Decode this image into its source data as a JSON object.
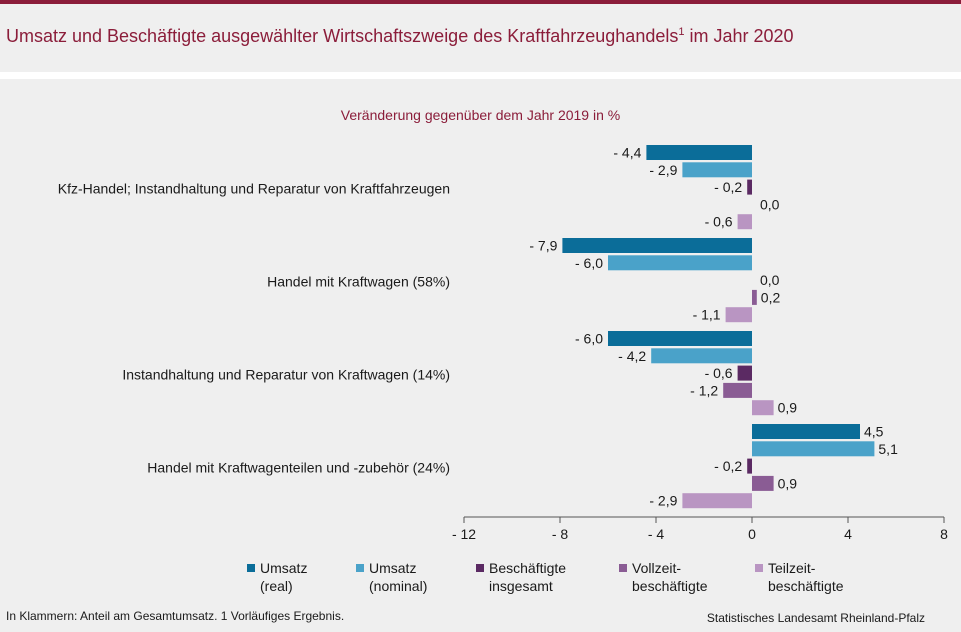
{
  "title": {
    "main": "Umsatz und Beschäftigte ausgewählter Wirtschaftszweige des Kraftfahrzeughandels",
    "sup": "1",
    "suffix": " im Jahr 2020"
  },
  "subtitle": "Veränderung gegenüber dem Jahr 2019 in %",
  "footnote": "In Klammern: Anteil am Gesamtumsatz. 1 Vorläufiges Ergebnis.",
  "source": "Statistisches Landesamt Rheinland-Pfalz",
  "chart_data": {
    "type": "bar",
    "orientation": "horizontal",
    "xlim": [
      -12,
      8
    ],
    "xticks": [
      -12,
      -8,
      -4,
      0,
      4,
      8
    ],
    "xtick_labels": [
      "- 12",
      "- 8",
      "- 4",
      "0",
      "4",
      "8"
    ],
    "categories": [
      "Kfz-Handel; Instandhaltung und Reparatur von Kraftfahrzeugen",
      "Handel mit Kraftwagen (58%)",
      "Instandhaltung und Reparatur von Kraftwagen (14%)",
      "Handel mit Kraftwagenteilen und -zubehör (24%)"
    ],
    "series": [
      {
        "name": "Umsatz (real)",
        "legend_lines": [
          "Umsatz",
          "(real)"
        ],
        "color": "#0b6d99",
        "values": [
          -4.4,
          -7.9,
          -6.0,
          4.5
        ],
        "labels": [
          "- 4,4",
          "- 7,9",
          "- 6,0",
          "4,5"
        ]
      },
      {
        "name": "Umsatz (nominal)",
        "legend_lines": [
          "Umsatz",
          "(nominal)"
        ],
        "color": "#4aa2c9",
        "values": [
          -2.9,
          -6.0,
          -4.2,
          5.1
        ],
        "labels": [
          "- 2,9",
          "- 6,0",
          "- 4,2",
          "5,1"
        ]
      },
      {
        "name": "Beschäftigte insgesamt",
        "legend_lines": [
          "Beschäftigte",
          "insgesamt"
        ],
        "color": "#5b2a63",
        "values": [
          -0.2,
          0.0,
          -0.6,
          -0.2
        ],
        "labels": [
          "- 0,2",
          "0,0",
          "- 0,6",
          "- 0,2"
        ]
      },
      {
        "name": "Vollzeitbeschäftigte",
        "legend_lines": [
          "Vollzeit-",
          "beschäftigte"
        ],
        "color": "#8a5c94",
        "values": [
          0.0,
          0.2,
          -1.2,
          0.9
        ],
        "labels": [
          "0,0",
          "0,2",
          "- 1,2",
          "0,9"
        ]
      },
      {
        "name": "Teilzeitbeschäftigte",
        "legend_lines": [
          "Teilzeit-",
          "beschäftigte"
        ],
        "color": "#b995c2",
        "values": [
          -0.6,
          -1.1,
          0.9,
          -2.9
        ],
        "labels": [
          "- 0,6",
          "- 1,1",
          "0,9",
          "- 2,9"
        ]
      }
    ],
    "legend_position": "bottom",
    "grid": false
  }
}
